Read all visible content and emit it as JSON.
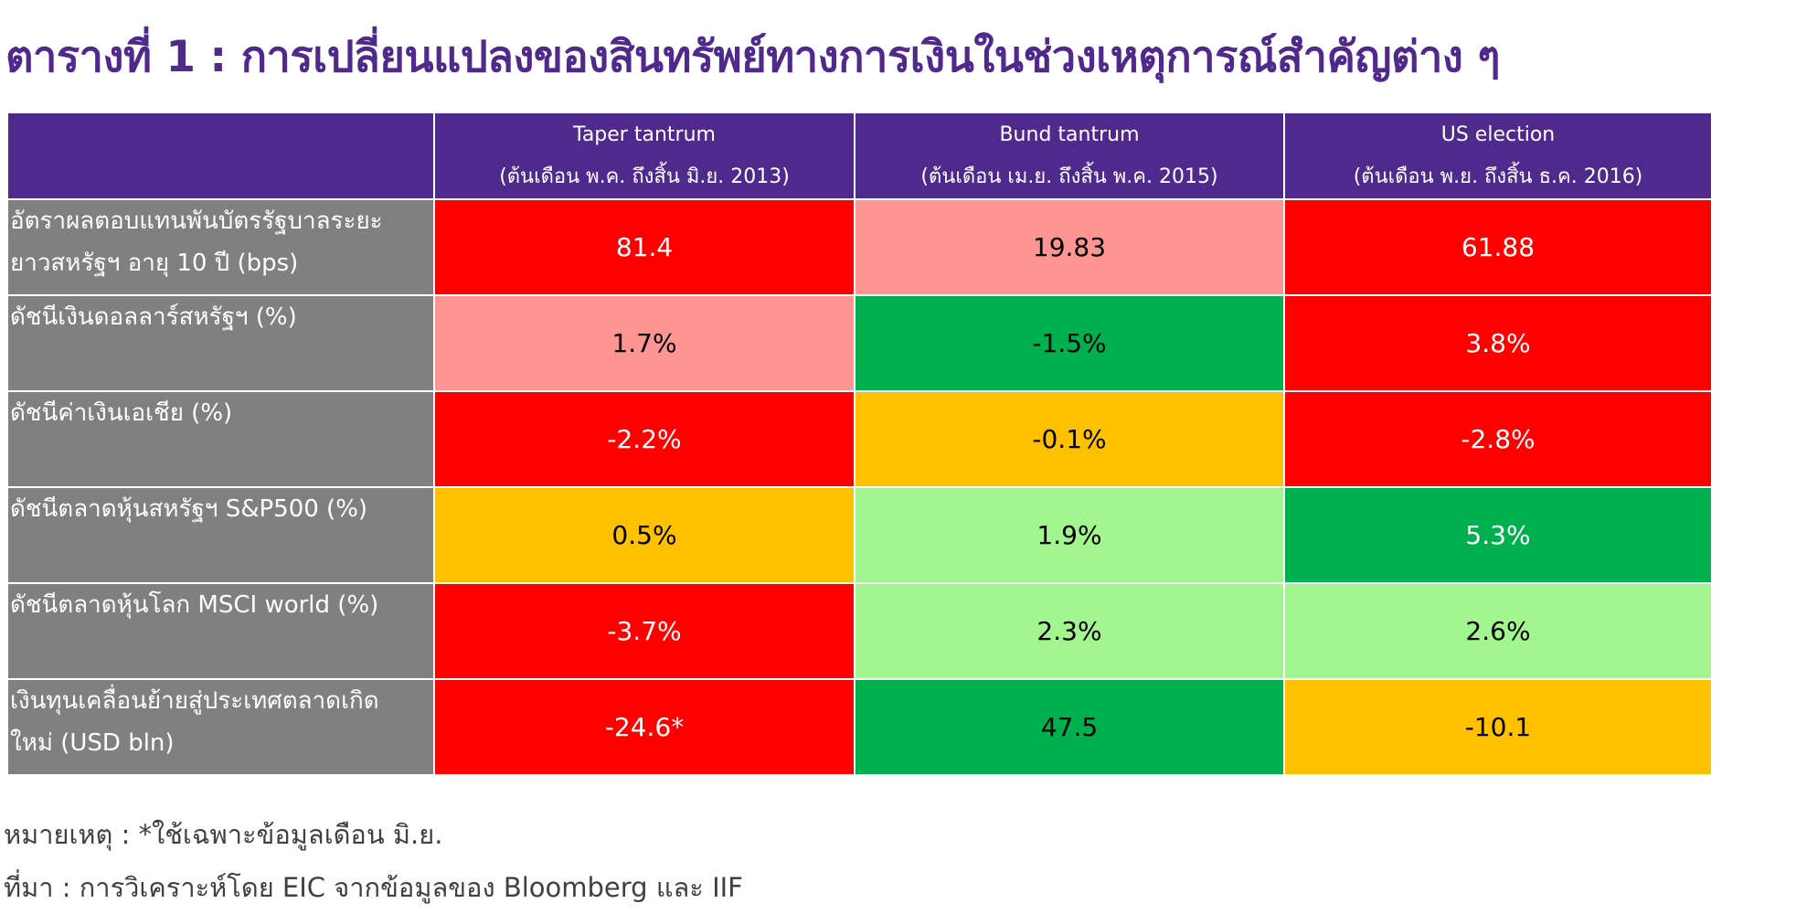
{
  "title": "ตารางที่ 1 : การเปลี่ยนแปลงของสินทรัพย์ทางการเงินในช่วงเหตุการณ์สำคัญต่าง ๆ",
  "table": {
    "headers": [
      {
        "name": "Taper tantrum",
        "period": "(ต้นเดือน พ.ค. ถึงสิ้น มิ.ย. 2013)"
      },
      {
        "name": "Bund tantrum",
        "period": "(ต้นเดือน เม.ย. ถึงสิ้น พ.ค. 2015)"
      },
      {
        "name": "US election",
        "period": "(ต้นเดือน พ.ย. ถึงสิ้น ธ.ค. 2016)"
      }
    ],
    "rows": [
      {
        "label_line1": "อัตราผลตอบแทนพันบัตรรัฐบาลระยะ",
        "label_line2": "ยาวสหรัฐฯ อายุ 10 ปี (bps)",
        "values": [
          "81.4",
          "19.83",
          "61.88"
        ]
      },
      {
        "label_line1": "ดัชนีเงินดอลลาร์สหรัฐฯ (%)",
        "label_line2": "",
        "values": [
          "1.7%",
          "-1.5%",
          "3.8%"
        ]
      },
      {
        "label_line1": "ดัชนีค่าเงินเอเชีย (%)",
        "label_line2": "",
        "values": [
          "-2.2%",
          "-0.1%",
          "-2.8%"
        ]
      },
      {
        "label_line1": "ดัชนีตลาดหุ้นสหรัฐฯ S&P500 (%)",
        "label_line2": "",
        "values": [
          "0.5%",
          "1.9%",
          "5.3%"
        ]
      },
      {
        "label_line1": "ดัชนีตลาดหุ้นโลก MSCI world (%)",
        "label_line2": "",
        "values": [
          "-3.7%",
          "2.3%",
          "2.6%"
        ]
      },
      {
        "label_line1": "เงินทุนเคลื่อนย้ายสู่ประเทศตลาดเกิด",
        "label_line2": "ใหม่ (USD bln)",
        "values": [
          "-24.6*",
          "47.5",
          "-10.1"
        ]
      }
    ]
  },
  "colors": {
    "header_bg": "#4f2a8c",
    "label_bg": "#808080",
    "red": "#ff0000",
    "pink": "#ff9593",
    "green": "#00b04e",
    "light_green": "#a3f58f",
    "amber": "#ffc000"
  },
  "notes": {
    "remark": "หมายเหตุ : *ใช้เฉพาะข้อมูลเดือน มิ.ย.",
    "source": "ที่มา : การวิเคราะห์โดย EIC จากข้อมูลของ Bloomberg และ IIF"
  }
}
